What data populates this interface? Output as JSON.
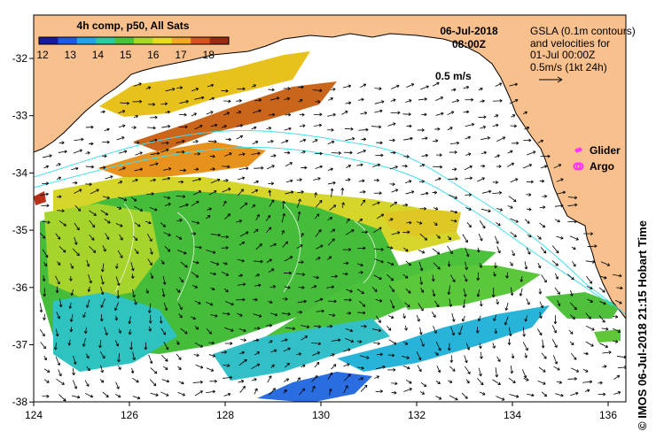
{
  "map": {
    "colorbar": {
      "title": "4h comp, p50, All Sats",
      "ticks": [
        "12",
        "13",
        "14",
        "15",
        "16",
        "17",
        "18"
      ],
      "palette": [
        "#1a1a9c",
        "#1f5be0",
        "#26a3e8",
        "#2fc9a0",
        "#49c43a",
        "#a8d62a",
        "#e8dc22",
        "#f0a826",
        "#d4561e",
        "#9a2a10"
      ]
    },
    "date_label": "06-Jul-2018",
    "time_label": "08:00Z",
    "gsla_note": [
      "GSLA (0.1m contours)",
      "and velocities for",
      "01-Jul 00:00Z",
      "0.5m/s (1kt 24h)"
    ],
    "scale_label": "0.5 m/s",
    "legend": {
      "glider": "Glider",
      "argo": "Argo",
      "glider_color": "#ff33ff",
      "argo_color": "#ff33ff"
    },
    "credit": "© IMOS 06-Jul-2018 21:15 Hobart Time",
    "x_ticks": [
      "124",
      "126",
      "128",
      "130",
      "132",
      "134",
      "136"
    ],
    "y_ticks": [
      "-32",
      "-33",
      "-34",
      "-35",
      "-36",
      "-37",
      "-38"
    ],
    "colors": {
      "land": "#f7c08c",
      "contour": "#40e0f0",
      "arrow": "#000000"
    }
  }
}
